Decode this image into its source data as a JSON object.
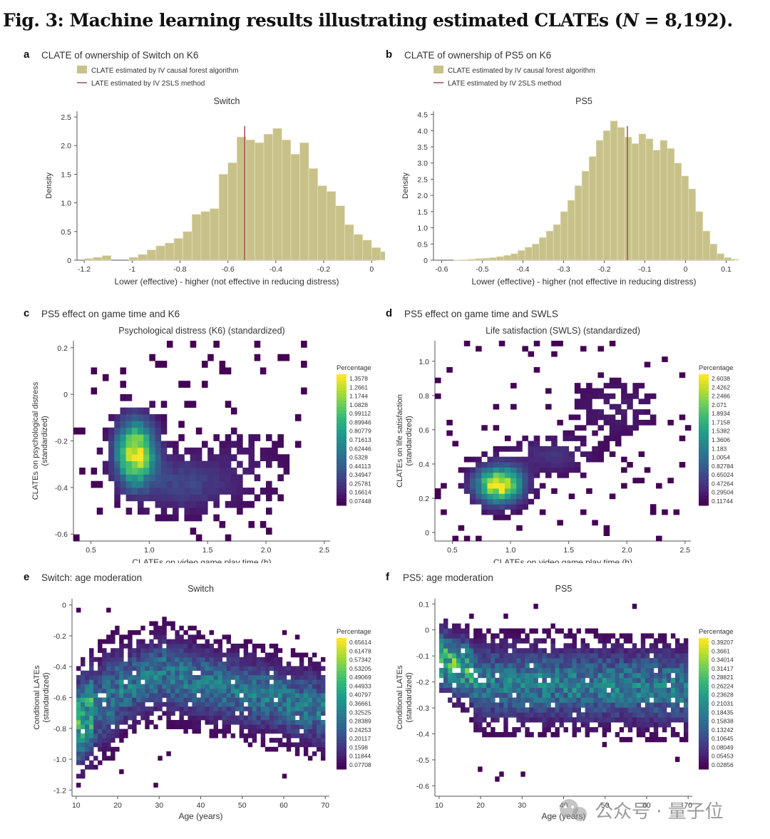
{
  "figure": {
    "title_prefix": "Fig. 3: Machine learning results illustrating estimated CLATEs (",
    "title_var": "N",
    "title_suffix": " = 8,192).",
    "watermark": "公众号 · 量子位"
  },
  "colors": {
    "hist_bar": "#c8c28a",
    "hist_bar_edge": "#e8e4c4",
    "late_line": "#9b4f5a",
    "axis": "#555555",
    "viridis": [
      "#440154",
      "#482878",
      "#3e4989",
      "#31688e",
      "#26828e",
      "#1f9e89",
      "#35b779",
      "#6ece58",
      "#b5de2b",
      "#fde725"
    ]
  },
  "chart_data": [
    {
      "id": "a",
      "type": "bar",
      "panel_letter": "a",
      "panel_title": "CLATE of ownership of Switch on K6",
      "title": "Switch",
      "legend": [
        "CLATE estimated by IV causal forest algorithm",
        "LATE estimated by IV 2SLS method"
      ],
      "xlabel": "Lower (effective) - higher (not effective in reducing distress)",
      "ylabel": "Density",
      "xlim": [
        -1.23,
        0.02
      ],
      "ylim": [
        0,
        2.6
      ],
      "xticks": [
        -1.2,
        -1,
        -0.8,
        -0.6,
        -0.4,
        -0.2,
        0
      ],
      "xtick_labels": [
        "-1.2",
        "-1",
        "-0.8",
        "-0.6",
        "-0.4",
        "-0.2",
        "0"
      ],
      "yticks": [
        0,
        0.5,
        1.0,
        1.5,
        2.0,
        2.5
      ],
      "ytick_labels": [
        "0",
        "0.5",
        "1.0",
        "1.5",
        "2.0",
        "2.5"
      ],
      "bin_start": -1.2,
      "bin_width": 0.0375,
      "values": [
        0.03,
        0.05,
        0.08,
        0.0,
        0.0,
        0.05,
        0.1,
        0.18,
        0.25,
        0.3,
        0.38,
        0.5,
        0.8,
        0.85,
        0.9,
        1.5,
        1.7,
        2.15,
        2.1,
        2.05,
        2.2,
        2.3,
        2.1,
        1.85,
        2.05,
        1.6,
        1.3,
        1.2,
        0.95,
        0.62,
        0.45,
        0.35,
        0.22,
        0.15,
        0.1,
        0.05,
        0.02
      ],
      "late": -0.53
    },
    {
      "id": "b",
      "type": "bar",
      "panel_letter": "b",
      "panel_title": "CLATE of ownership of PS5 on K6",
      "title": "PS5",
      "legend": [
        "CLATE estimated by IV causal forest algorithm",
        "LATE estimated by IV 2SLS method"
      ],
      "xlabel": "Lower (effective) - higher (not effective in reducing distress)",
      "ylabel": "Density",
      "xlim": [
        -0.62,
        0.12
      ],
      "ylim": [
        0,
        4.6
      ],
      "xticks": [
        -0.6,
        -0.5,
        -0.4,
        -0.3,
        -0.2,
        -0.1,
        0,
        0.1
      ],
      "xtick_labels": [
        "-0.6",
        "-0.5",
        "-0.4",
        "-0.3",
        "-0.2",
        "-0.1",
        "0",
        "0.1"
      ],
      "yticks": [
        0,
        0.5,
        1.0,
        1.5,
        2.0,
        2.5,
        3.0,
        3.5,
        4.0,
        4.5
      ],
      "ytick_labels": [
        "0",
        "0.5",
        "1.0",
        "1.5",
        "2.0",
        "2.5",
        "3.0",
        "3.5",
        "4.0",
        "4.5"
      ],
      "bin_start": -0.57,
      "bin_width": 0.0175,
      "values": [
        0.01,
        0.02,
        0.03,
        0.05,
        0.06,
        0.08,
        0.11,
        0.15,
        0.2,
        0.3,
        0.4,
        0.5,
        0.7,
        0.9,
        1.1,
        1.5,
        1.85,
        2.3,
        2.75,
        3.2,
        3.7,
        4.0,
        4.3,
        4.1,
        3.8,
        3.6,
        3.9,
        3.75,
        3.4,
        3.7,
        3.45,
        3.0,
        2.6,
        2.2,
        1.5,
        0.9,
        0.5,
        0.2,
        0.08,
        0.03
      ],
      "late": -0.143
    },
    {
      "id": "c",
      "type": "heatmap",
      "panel_letter": "c",
      "panel_title": "PS5 effect on game time and K6",
      "title": "Psychological distress (K6) (standardized)",
      "xlabel": "CLATEs on video game play time (h)",
      "ylabel": "CLATEs on psychological distress (standardized)",
      "xlim": [
        0.35,
        2.55
      ],
      "ylim": [
        -0.63,
        0.23
      ],
      "xticks": [
        0.5,
        1.0,
        1.5,
        2.0,
        2.5
      ],
      "xtick_labels": [
        "0.5",
        "1.0",
        "1.5",
        "2.0",
        "2.5"
      ],
      "yticks": [
        -0.6,
        -0.4,
        -0.2,
        0,
        0.2
      ],
      "ytick_labels": [
        "-0.6",
        "-0.4",
        "-0.2",
        "0",
        "0.2"
      ],
      "legend_title": "Percentage",
      "colorbar_labels": [
        "1.3578",
        "1.2661",
        "1.1744",
        "1.0828",
        "0.99112",
        "0.89946",
        "0.80779",
        "0.71613",
        "0.62446",
        "0.5328",
        "0.44113",
        "0.34947",
        "0.25781",
        "0.16614",
        "0.07448"
      ],
      "centers": [
        [
          0.88,
          -0.25,
          0.11,
          0.09,
          1.0
        ],
        [
          1.3,
          -0.38,
          0.25,
          0.08,
          0.18
        ],
        [
          1.85,
          -0.3,
          0.25,
          0.12,
          0.05
        ]
      ],
      "nx": 44,
      "ny": 30
    },
    {
      "id": "d",
      "type": "heatmap",
      "panel_letter": "d",
      "panel_title": "PS5 effect on game time and SWLS",
      "title": "Life satisfaction (SWLS) (standardized)",
      "xlabel": "CLATEs on video game play time (h)",
      "ylabel": "CLATEs on life satisfaction (standardized)",
      "xlim": [
        0.35,
        2.55
      ],
      "ylim": [
        -0.05,
        1.12
      ],
      "xticks": [
        0.5,
        1.0,
        1.5,
        2.0,
        2.5
      ],
      "xtick_labels": [
        "0.5",
        "1.0",
        "1.5",
        "2.0",
        "2.5"
      ],
      "yticks": [
        0,
        0.2,
        0.4,
        0.6,
        0.8,
        1.0
      ],
      "ytick_labels": [
        "0",
        "0.2",
        "0.4",
        "0.6",
        "0.8",
        "1.0"
      ],
      "legend_title": "Percentage",
      "colorbar_labels": [
        "2.6038",
        "2.4262",
        "2.2486",
        "2.071",
        "1.8934",
        "1.7158",
        "1.5382",
        "1.3606",
        "1.183",
        "1.0054",
        "0.82784",
        "0.65024",
        "0.47264",
        "0.29504",
        "0.11744"
      ],
      "centers": [
        [
          0.9,
          0.28,
          0.13,
          0.07,
          1.0
        ],
        [
          1.35,
          0.45,
          0.22,
          0.07,
          0.12
        ],
        [
          1.9,
          0.72,
          0.25,
          0.12,
          0.06
        ]
      ],
      "nx": 44,
      "ny": 38
    },
    {
      "id": "e",
      "type": "heatmap",
      "panel_letter": "e",
      "panel_title": "Switch: age moderation",
      "title": "Switch",
      "xlabel": "Age (years)",
      "ylabel": "Conditional LATEs (standardized)",
      "xlim": [
        9,
        71
      ],
      "ylim": [
        -1.24,
        0.04
      ],
      "xticks": [
        10,
        20,
        30,
        40,
        50,
        60,
        70
      ],
      "xtick_labels": [
        "10",
        "20",
        "30",
        "40",
        "50",
        "60",
        "70"
      ],
      "yticks": [
        -1.2,
        -1.0,
        -0.8,
        -0.6,
        -0.4,
        -0.2,
        0
      ],
      "ytick_labels": [
        "-1.2",
        "-1.0",
        "-0.8",
        "-0.6",
        "-0.4",
        "-0.2",
        "0"
      ],
      "legend_title": "Percentage",
      "colorbar_labels": [
        "0.65614",
        "0.61478",
        "0.57342",
        "0.53205",
        "0.49069",
        "0.44933",
        "0.40797",
        "0.36661",
        "0.32525",
        "0.28389",
        "0.24253",
        "0.20117",
        "0.1598",
        "0.11844",
        "0.07708"
      ],
      "nx": 60,
      "ny": 44
    },
    {
      "id": "f",
      "type": "heatmap",
      "panel_letter": "f",
      "panel_title": "PS5: age moderation",
      "title": "PS5",
      "xlabel": "Age (years)",
      "ylabel": "Conditional LATEs (standardized)",
      "xlim": [
        9,
        71
      ],
      "ylim": [
        -0.64,
        0.12
      ],
      "xticks": [
        10,
        20,
        30,
        40,
        50,
        60,
        70
      ],
      "xtick_labels": [
        "10",
        "20",
        "30",
        "40",
        "50",
        "60",
        "70"
      ],
      "yticks": [
        -0.6,
        -0.5,
        -0.4,
        -0.3,
        -0.2,
        -0.1,
        0,
        0.1
      ],
      "ytick_labels": [
        "-0.6",
        "-0.5",
        "-0.4",
        "-0.3",
        "-0.2",
        "-0.1",
        "0",
        "0.1"
      ],
      "legend_title": "Percentage",
      "colorbar_labels": [
        "0.39207",
        "0.3661",
        "0.34014",
        "0.31417",
        "0.28821",
        "0.26224",
        "0.23628",
        "0.21031",
        "0.18435",
        "0.15838",
        "0.13242",
        "0.10645",
        "0.08049",
        "0.05453",
        "0.02856"
      ],
      "nx": 60,
      "ny": 40
    }
  ]
}
